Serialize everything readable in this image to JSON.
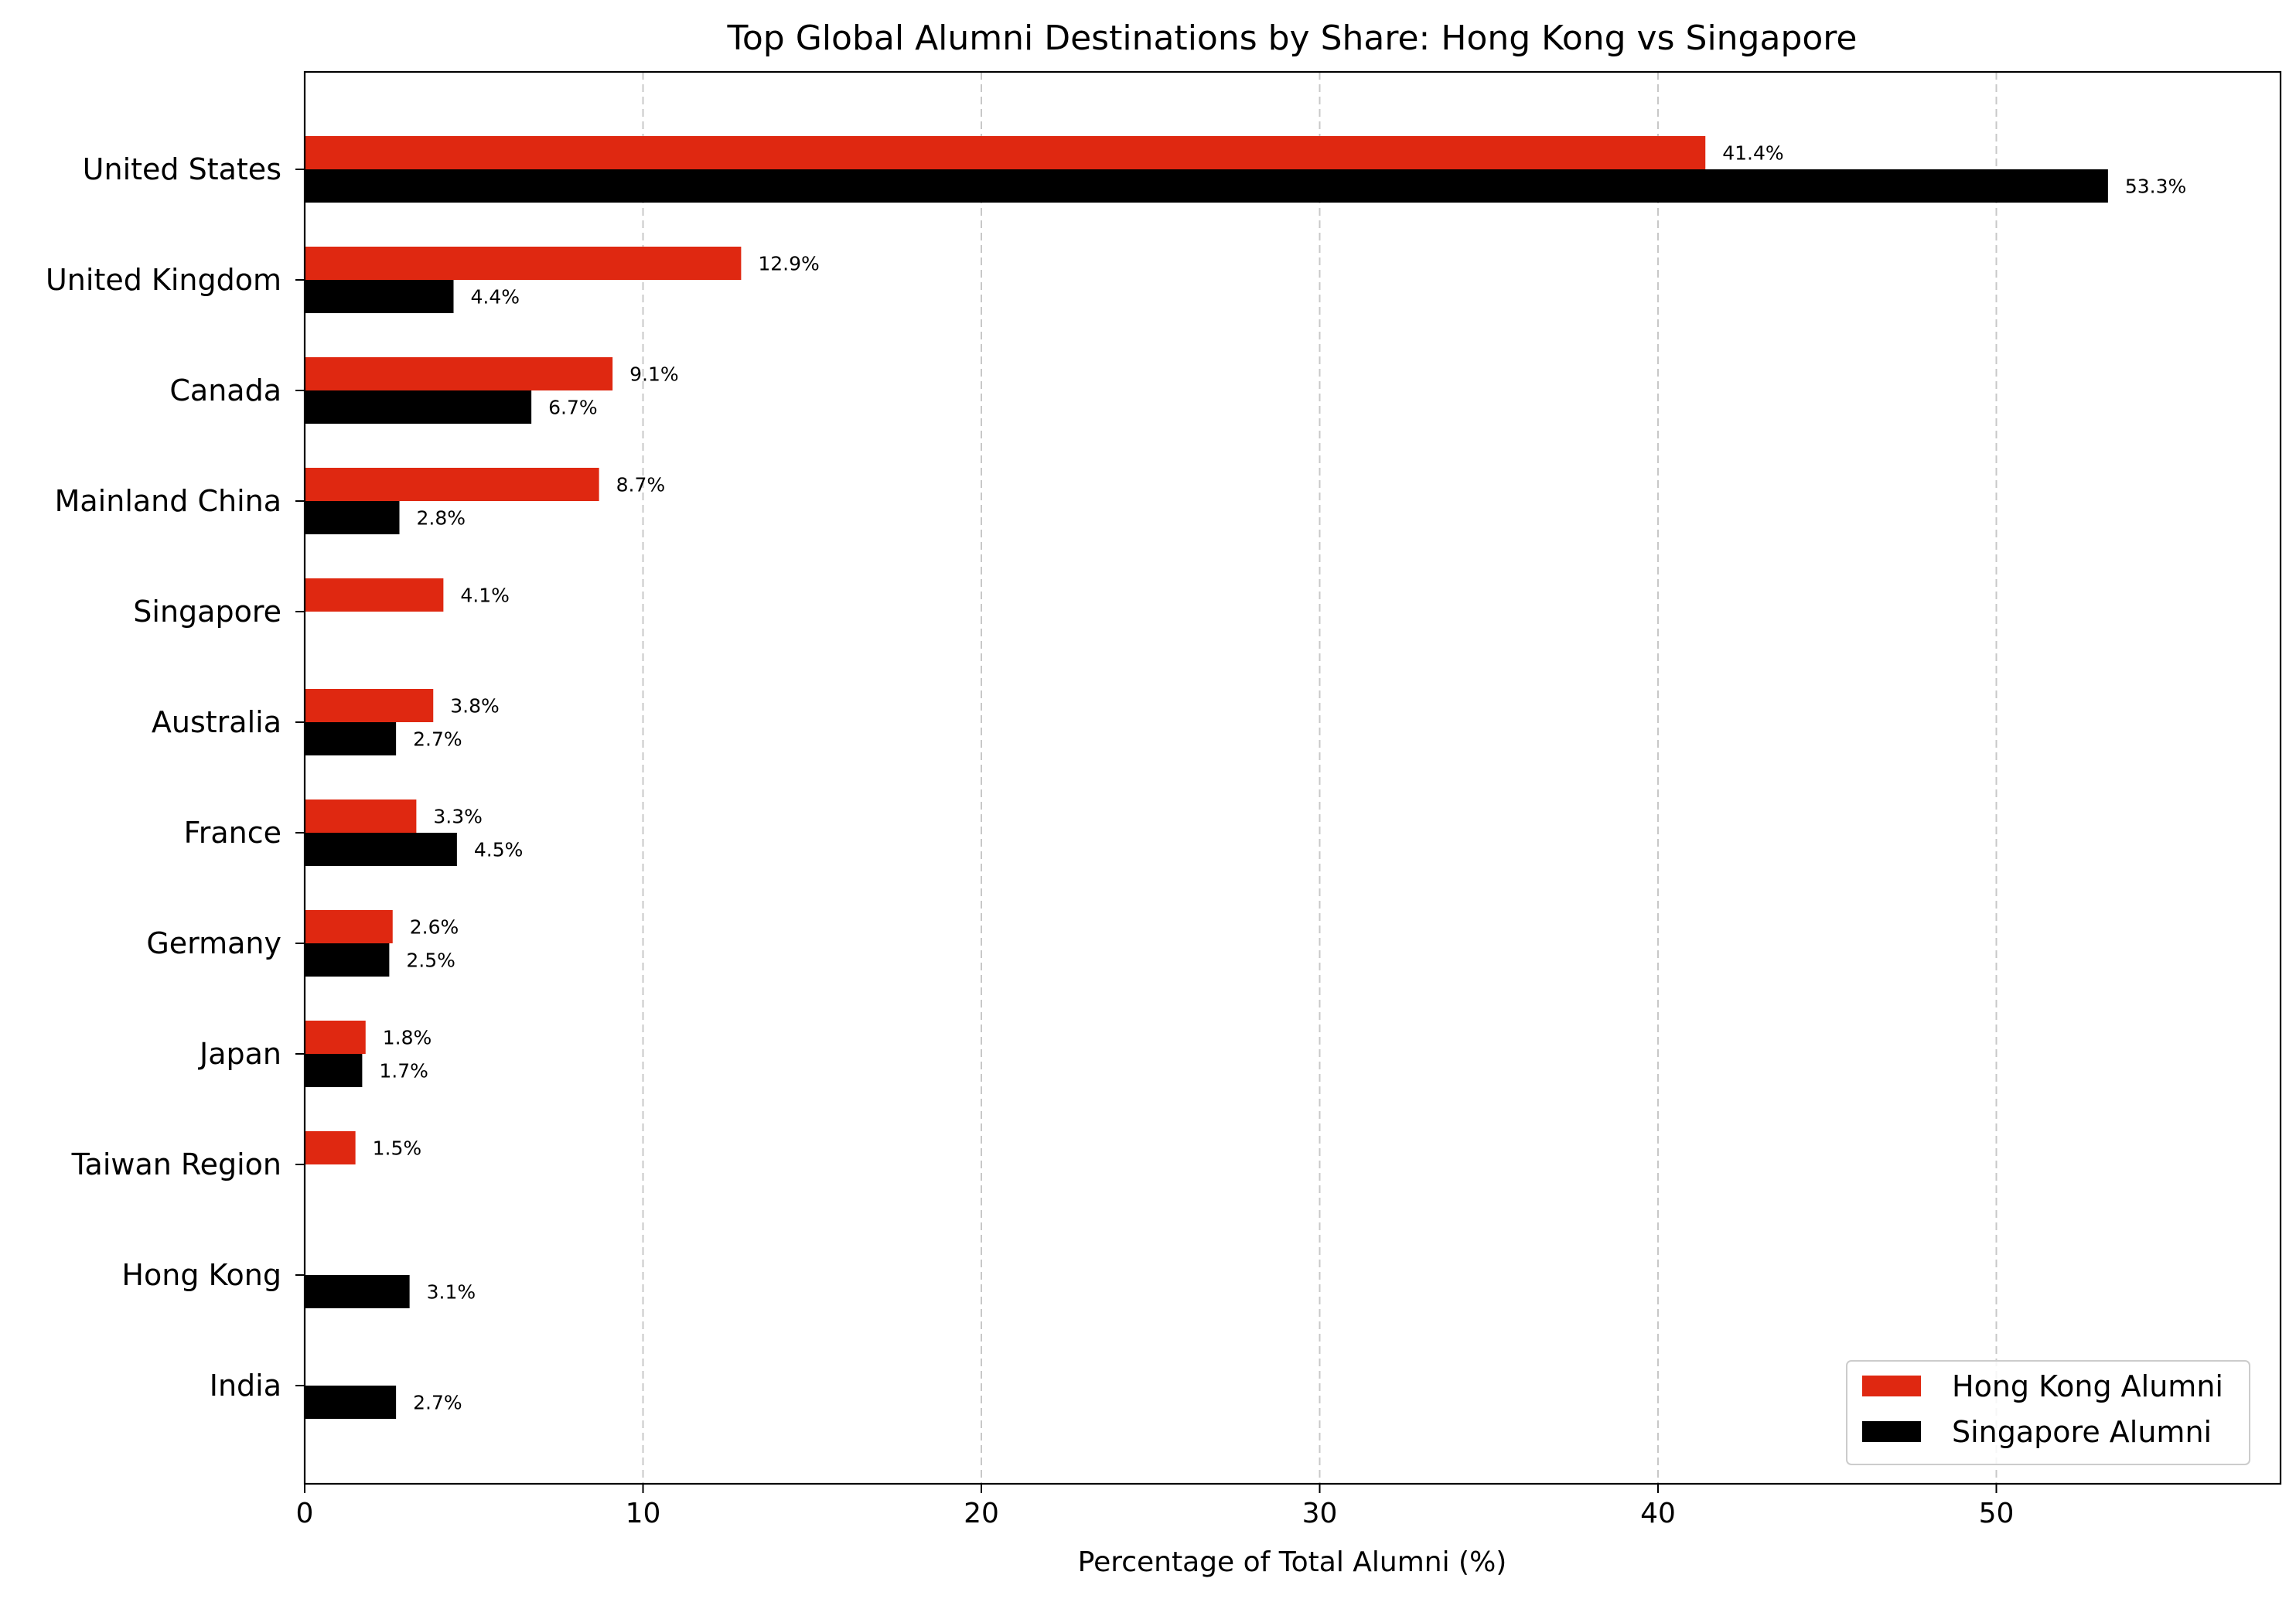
{
  "chart_data": {
    "type": "bar",
    "orientation": "horizontal",
    "title": "Top Global Alumni Destinations by Share: Hong Kong vs Singapore",
    "xlabel": "Percentage of Total Alumni (%)",
    "ylabel": "",
    "xlim": [
      0,
      58.4
    ],
    "xticks": [
      0,
      10,
      20,
      30,
      40,
      50
    ],
    "grid": "x-dashed",
    "legend_position": "bottom-right",
    "categories": [
      "United States",
      "United Kingdom",
      "Canada",
      "Mainland China",
      "Singapore",
      "Australia",
      "France",
      "Germany",
      "Japan",
      "Taiwan Region",
      "Hong Kong",
      "India"
    ],
    "series": [
      {
        "name": "Hong Kong Alumni",
        "color": "#df2811",
        "values": [
          41.4,
          12.9,
          9.1,
          8.7,
          4.1,
          3.8,
          3.3,
          2.6,
          1.8,
          1.5,
          null,
          null
        ],
        "labels": [
          "41.4%",
          "12.9%",
          "9.1%",
          "8.7%",
          "4.1%",
          "3.8%",
          "3.3%",
          "2.6%",
          "1.8%",
          "1.5%",
          "",
          ""
        ]
      },
      {
        "name": "Singapore Alumni",
        "color": "#000000",
        "values": [
          53.3,
          4.4,
          6.7,
          2.8,
          null,
          2.7,
          4.5,
          2.5,
          1.7,
          null,
          3.1,
          2.7
        ],
        "labels": [
          "53.3%",
          "4.4%",
          "6.7%",
          "2.8%",
          "",
          "2.7%",
          "4.5%",
          "2.5%",
          "1.7%",
          "",
          "3.1%",
          "2.7%"
        ]
      }
    ]
  }
}
